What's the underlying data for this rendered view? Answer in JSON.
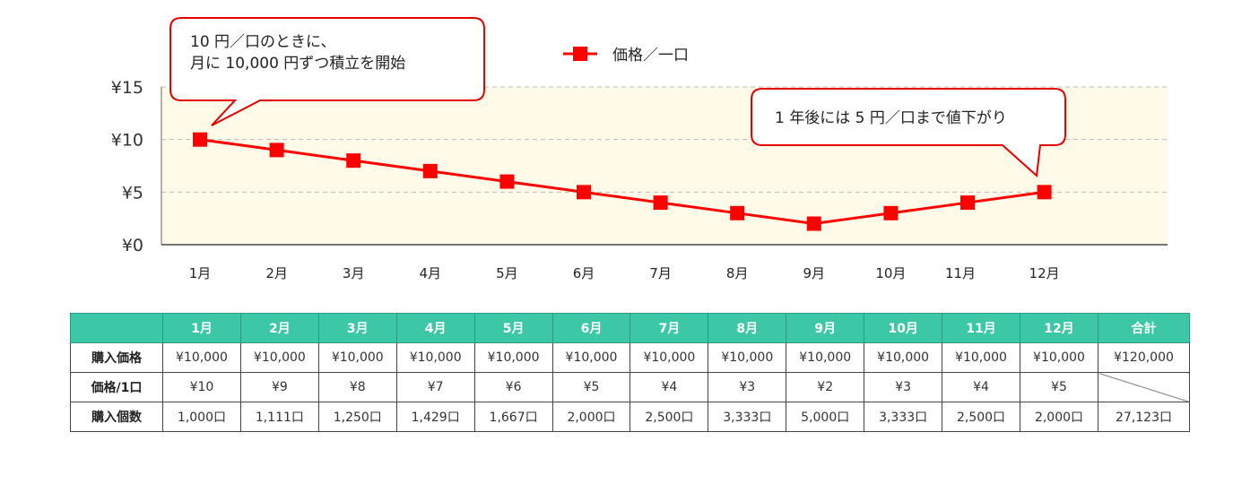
{
  "chart_data": {
    "type": "line",
    "title": "",
    "xlabel": "",
    "ylabel": "",
    "categories": [
      "1月",
      "2月",
      "3月",
      "4月",
      "5月",
      "6月",
      "7月",
      "8月",
      "9月",
      "10月",
      "11月",
      "12月"
    ],
    "series": [
      {
        "name": "価格／一口",
        "values": [
          10,
          9,
          8,
          7,
          6,
          5,
          4,
          3,
          2,
          3,
          4,
          5
        ],
        "color": "#ff0000"
      }
    ],
    "ylim": [
      0,
      15
    ],
    "yticks": [
      0,
      5,
      10,
      15
    ],
    "ytick_labels": [
      "¥0",
      "¥5",
      "¥10",
      "¥15"
    ],
    "grid": true,
    "legend": "top-center",
    "annotations": [
      {
        "text": "10 円／口のときに、\n月に 10,000 円ずつ積立を開始",
        "point": "1月"
      },
      {
        "text": "1 年後には 5 円／口まで値下がり",
        "point": "12月"
      }
    ],
    "colors": {
      "plot_bg": "#fffbe8",
      "line": "#ff0000",
      "callout_border": "#e60000",
      "grid": "#bbbbbb"
    }
  },
  "table": {
    "header": [
      "",
      "1月",
      "2月",
      "3月",
      "4月",
      "5月",
      "6月",
      "7月",
      "8月",
      "9月",
      "10月",
      "11月",
      "12月",
      "合計"
    ],
    "rows": [
      {
        "label": "購入価格",
        "cells": [
          "¥10,000",
          "¥10,000",
          "¥10,000",
          "¥10,000",
          "¥10,000",
          "¥10,000",
          "¥10,000",
          "¥10,000",
          "¥10,000",
          "¥10,000",
          "¥10,000",
          "¥10,000",
          "¥120,000"
        ]
      },
      {
        "label": "価格/1口",
        "cells": [
          "¥10",
          "¥9",
          "¥8",
          "¥7",
          "¥6",
          "¥5",
          "¥4",
          "¥3",
          "¥2",
          "¥3",
          "¥4",
          "¥5",
          ""
        ]
      },
      {
        "label": "購入個数",
        "cells": [
          "1,000口",
          "1,111口",
          "1,250口",
          "1,429口",
          "1,667口",
          "2,000口",
          "2,500口",
          "3,333口",
          "5,000口",
          "3,333口",
          "2,500口",
          "2,000口",
          "27,123口"
        ]
      }
    ],
    "colors": {
      "header_bg": "#3cc7a6",
      "header_text": "#ffffff"
    }
  }
}
